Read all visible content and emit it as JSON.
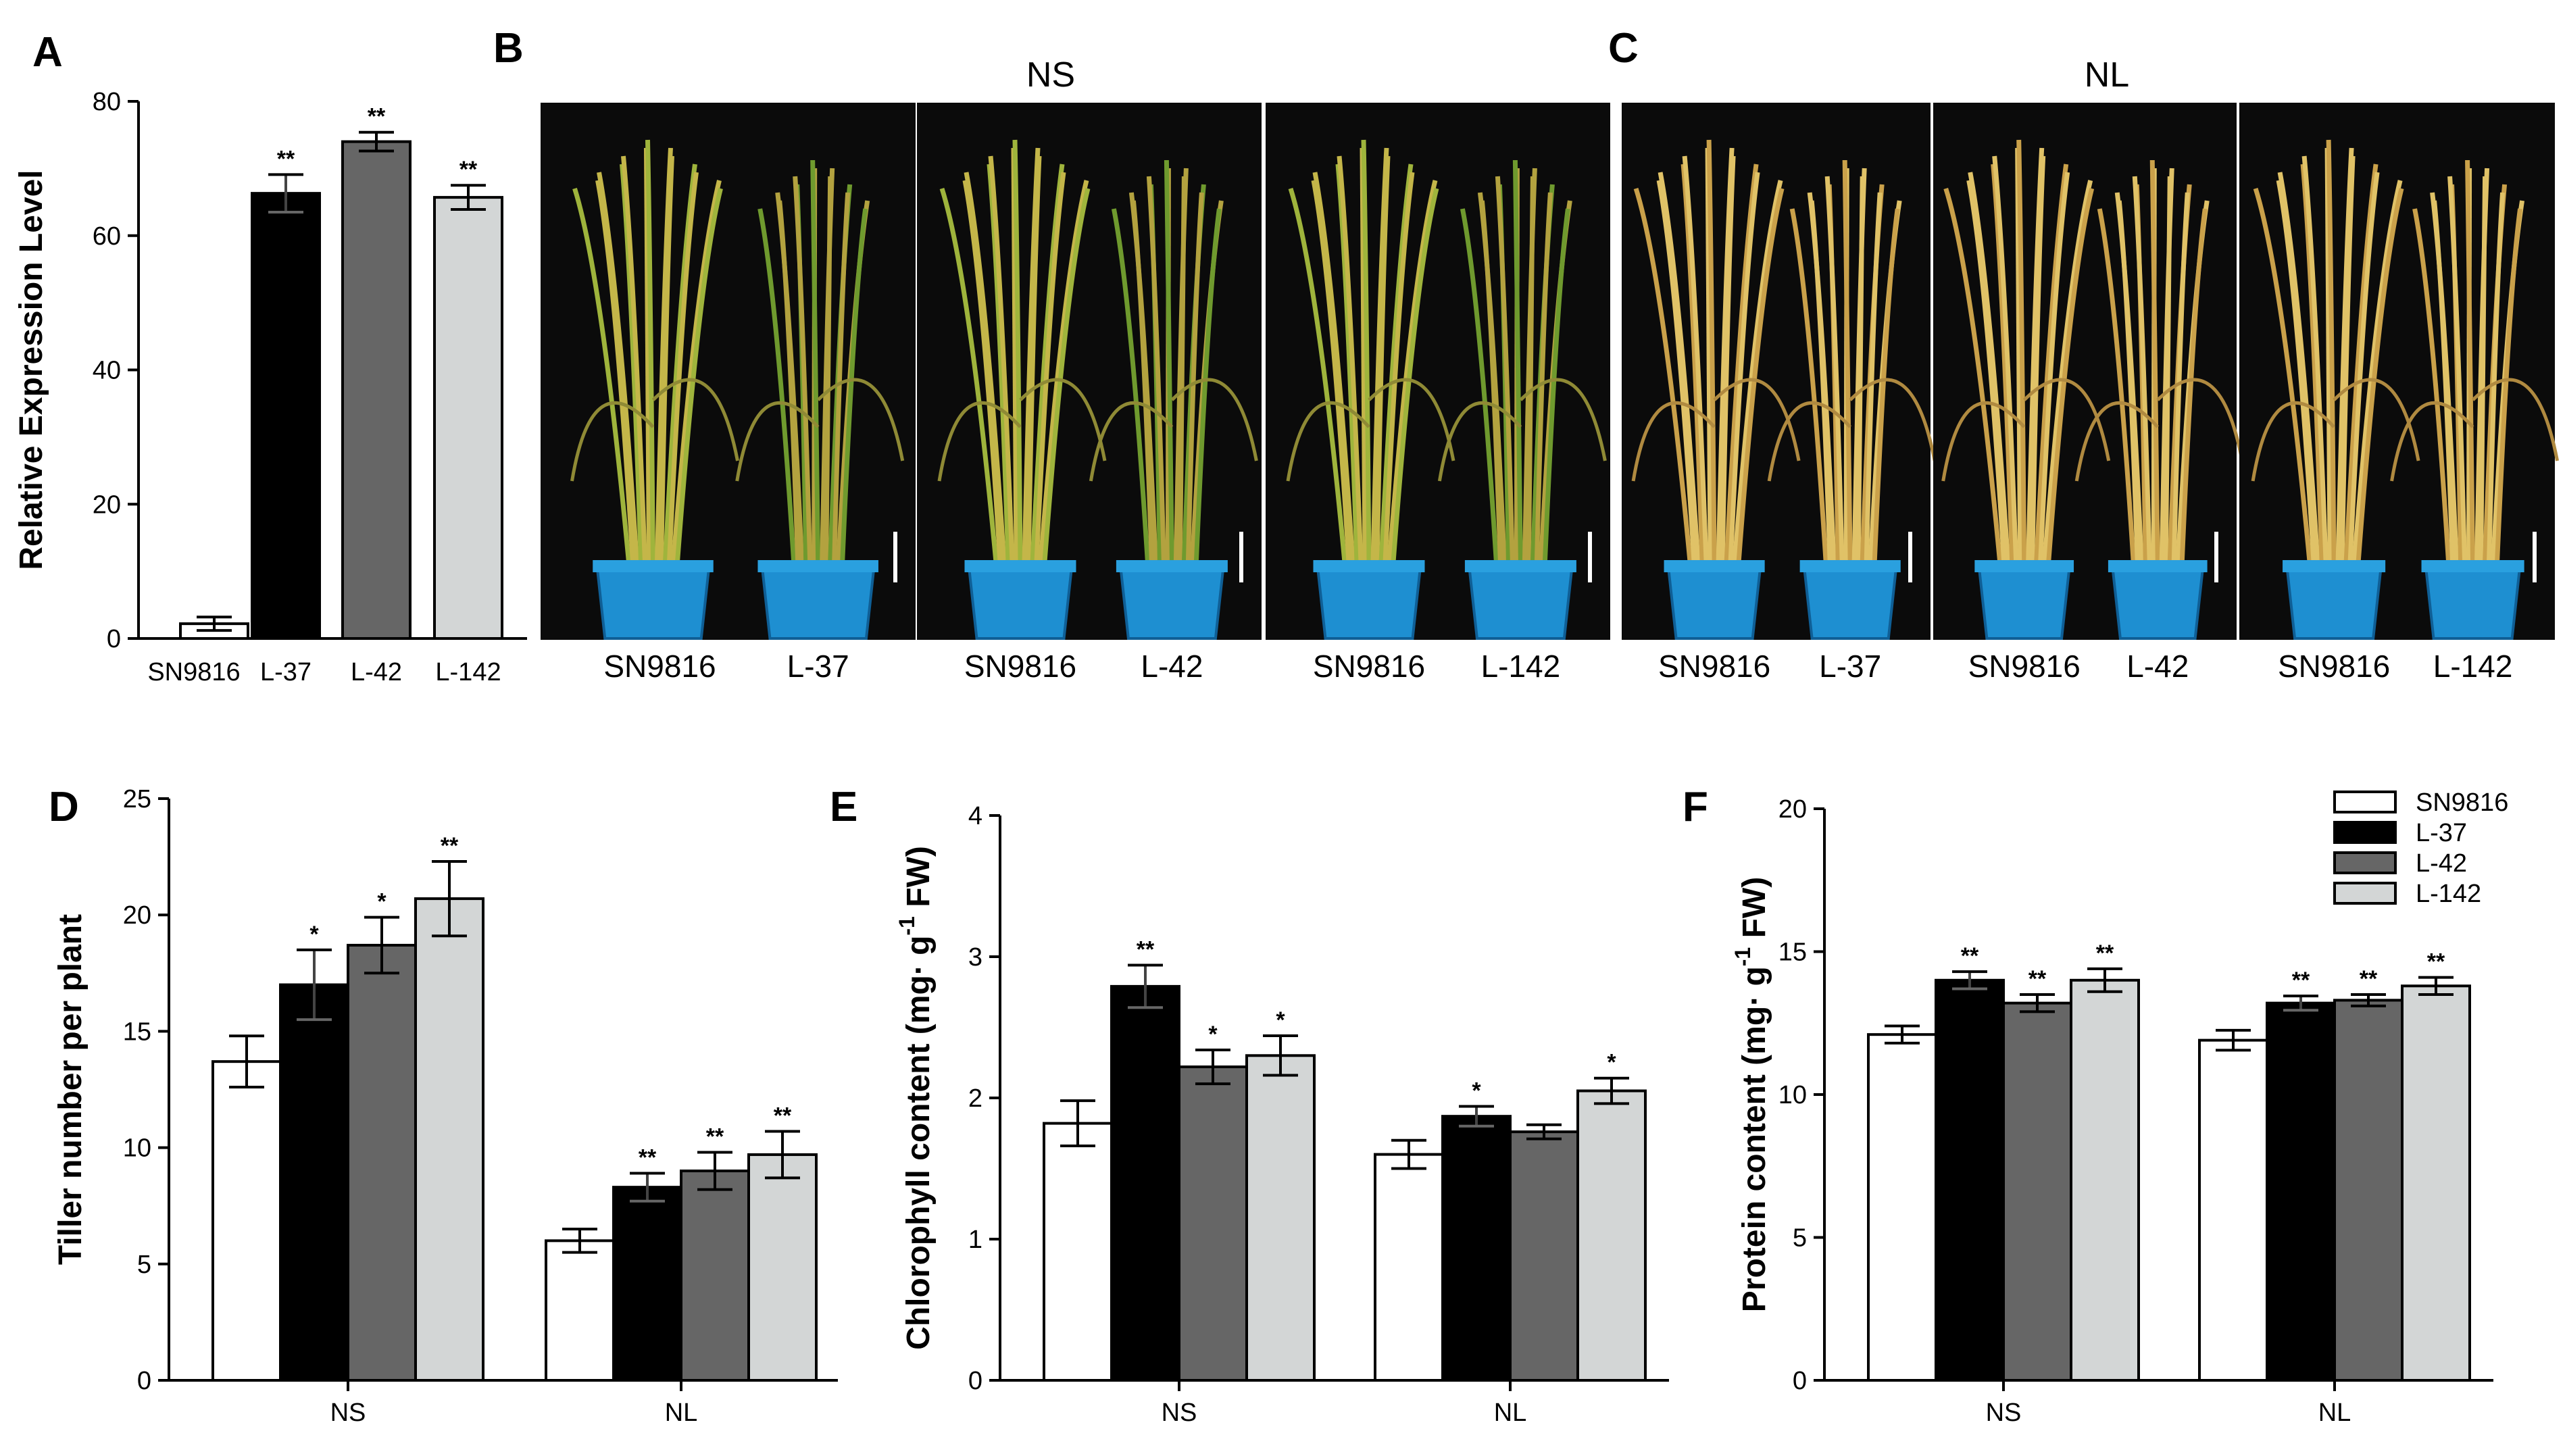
{
  "panel_letters": [
    "A",
    "B",
    "C",
    "D",
    "E",
    "F"
  ],
  "photos": {
    "NS": {
      "title": "NS",
      "pairs": [
        {
          "left": "SN9816",
          "right": "L-37"
        },
        {
          "left": "SN9816",
          "right": "L-42"
        },
        {
          "left": "SN9816",
          "right": "L-142"
        }
      ]
    },
    "NL": {
      "title": "NL",
      "pairs": [
        {
          "left": "SN9816",
          "right": "L-37"
        },
        {
          "left": "SN9816",
          "right": "L-42"
        },
        {
          "left": "SN9816",
          "right": "L-142"
        }
      ]
    }
  },
  "legend": {
    "items": [
      "SN9816",
      "L-37",
      "L-42",
      "L-142"
    ],
    "colors": [
      "#ffffff",
      "#000000",
      "#666666",
      "#d3d6d6"
    ]
  },
  "chart_data": [
    {
      "id": "A",
      "type": "bar",
      "categories": [
        "SN9816",
        "L-37",
        "L-42",
        "L-142"
      ],
      "values": [
        2.2,
        66.3,
        74.0,
        65.7
      ],
      "errors": [
        1.0,
        2.8,
        1.4,
        1.8
      ],
      "sig": [
        "",
        "**",
        "**",
        "**"
      ],
      "colors": [
        "#ffffff",
        "#000000",
        "#666666",
        "#d3d6d6"
      ],
      "title": "",
      "xlabel": "",
      "ylabel": "Relative Expression Level",
      "ylim": [
        0,
        80
      ],
      "yticks": [
        0,
        20,
        40,
        60,
        80
      ]
    },
    {
      "id": "D",
      "type": "bar",
      "categories": [
        "NS",
        "NL"
      ],
      "series": [
        {
          "name": "SN9816",
          "values": [
            13.7,
            6.0
          ],
          "errors": [
            1.1,
            0.5
          ],
          "sig": [
            "",
            ""
          ]
        },
        {
          "name": "L-37",
          "values": [
            17.0,
            8.3
          ],
          "errors": [
            1.5,
            0.6
          ],
          "sig": [
            "*",
            "**"
          ]
        },
        {
          "name": "L-42",
          "values": [
            18.7,
            9.0
          ],
          "errors": [
            1.2,
            0.8
          ],
          "sig": [
            "*",
            "**"
          ]
        },
        {
          "name": "L-142",
          "values": [
            20.7,
            9.7
          ],
          "errors": [
            1.6,
            1.0
          ],
          "sig": [
            "**",
            "**"
          ]
        }
      ],
      "title": "",
      "xlabel": "",
      "ylabel": "Tiller number per plant",
      "ylim": [
        0,
        25
      ],
      "yticks": [
        0,
        5,
        10,
        15,
        20,
        25
      ]
    },
    {
      "id": "E",
      "type": "bar",
      "categories": [
        "NS",
        "NL"
      ],
      "series": [
        {
          "name": "SN9816",
          "values": [
            1.82,
            1.6
          ],
          "errors": [
            0.16,
            0.1
          ],
          "sig": [
            "",
            ""
          ]
        },
        {
          "name": "L-37",
          "values": [
            2.79,
            1.87
          ],
          "errors": [
            0.15,
            0.07
          ],
          "sig": [
            "**",
            "*"
          ]
        },
        {
          "name": "L-42",
          "values": [
            2.22,
            1.76
          ],
          "errors": [
            0.12,
            0.05
          ],
          "sig": [
            "*",
            ""
          ]
        },
        {
          "name": "L-142",
          "values": [
            2.3,
            2.05
          ],
          "errors": [
            0.14,
            0.09
          ],
          "sig": [
            "*",
            "*"
          ]
        }
      ],
      "title": "",
      "xlabel": "",
      "ylabel": "Chlorophyll content (mg· g",
      "ylabel_sup": "-1",
      "ylabel_tail": " FW)",
      "ylim": [
        0,
        4
      ],
      "yticks": [
        0,
        1,
        2,
        3,
        4
      ]
    },
    {
      "id": "F",
      "type": "bar",
      "categories": [
        "NS",
        "NL"
      ],
      "series": [
        {
          "name": "SN9816",
          "values": [
            12.1,
            11.9
          ],
          "errors": [
            0.3,
            0.35
          ],
          "sig": [
            "",
            ""
          ]
        },
        {
          "name": "L-37",
          "values": [
            14.0,
            13.2
          ],
          "errors": [
            0.3,
            0.25
          ],
          "sig": [
            "**",
            "**"
          ]
        },
        {
          "name": "L-42",
          "values": [
            13.2,
            13.3
          ],
          "errors": [
            0.3,
            0.2
          ],
          "sig": [
            "**",
            "**"
          ]
        },
        {
          "name": "L-142",
          "values": [
            14.0,
            13.8
          ],
          "errors": [
            0.4,
            0.3
          ],
          "sig": [
            "**",
            "**"
          ]
        }
      ],
      "title": "",
      "xlabel": "",
      "ylabel": "Protein content (mg· g",
      "ylabel_sup": "-1",
      "ylabel_tail": "  FW)",
      "ylim": [
        0,
        20
      ],
      "yticks": [
        0,
        5,
        10,
        15,
        20
      ]
    }
  ]
}
